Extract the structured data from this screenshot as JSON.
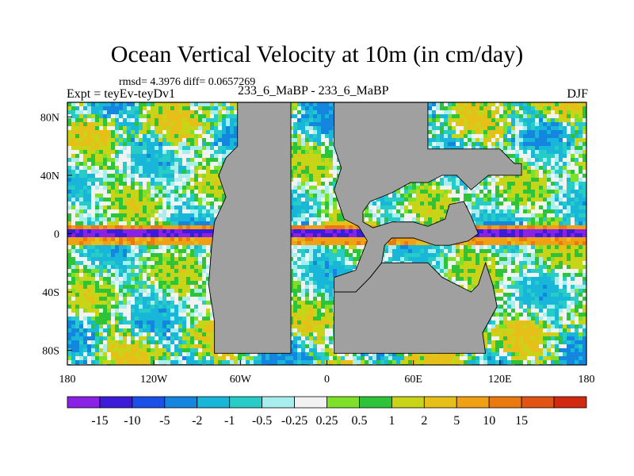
{
  "header": {
    "title": "Ocean Vertical Velocity at 10m (in cm/day)",
    "stats": "rmsd= 4.3976 diff= 0.0657269",
    "experiment": "Expt = teyEv-teyDv1",
    "comparison": "233_6_MaBP - 233_6_MaBP",
    "season": "DJF"
  },
  "map": {
    "lon_range": [
      -180,
      180
    ],
    "lat_range": [
      -90,
      90
    ],
    "x_ticks": [
      {
        "value": -180,
        "label": "180"
      },
      {
        "value": -120,
        "label": "120W"
      },
      {
        "value": -60,
        "label": "60W"
      },
      {
        "value": 0,
        "label": "0"
      },
      {
        "value": 60,
        "label": "60E"
      },
      {
        "value": 120,
        "label": "120E"
      },
      {
        "value": 180,
        "label": "180"
      }
    ],
    "y_ticks": [
      {
        "value": 80,
        "label": "80N"
      },
      {
        "value": 40,
        "label": "40N"
      },
      {
        "value": 0,
        "label": "0"
      },
      {
        "value": -40,
        "label": "40S"
      },
      {
        "value": -80,
        "label": "80S"
      }
    ],
    "land_color": "#a0a0a0",
    "west_continent": [
      [
        -72,
        90
      ],
      [
        -62,
        90
      ],
      [
        -62,
        60
      ],
      [
        -70,
        52
      ],
      [
        -75,
        40
      ],
      [
        -70,
        25
      ],
      [
        -78,
        8
      ],
      [
        -80,
        -10
      ],
      [
        -82,
        -35
      ],
      [
        -78,
        -60
      ],
      [
        -78,
        -82
      ],
      [
        -25,
        -82
      ],
      [
        -25,
        90
      ]
    ],
    "north_continent": [
      [
        5,
        90
      ],
      [
        70,
        90
      ],
      [
        70,
        58
      ],
      [
        120,
        58
      ],
      [
        130,
        48
      ],
      [
        135,
        48
      ],
      [
        135,
        40
      ],
      [
        112,
        40
      ],
      [
        100,
        30
      ],
      [
        90,
        40
      ],
      [
        80,
        40
      ],
      [
        70,
        35
      ],
      [
        58,
        35
      ],
      [
        45,
        28
      ],
      [
        30,
        22
      ],
      [
        25,
        15
      ],
      [
        25,
        8
      ],
      [
        32,
        4
      ],
      [
        45,
        8
      ],
      [
        60,
        8
      ],
      [
        70,
        5
      ],
      [
        82,
        10
      ],
      [
        85,
        20
      ],
      [
        95,
        22
      ],
      [
        100,
        12
      ],
      [
        105,
        0
      ],
      [
        98,
        -5
      ],
      [
        85,
        -8
      ],
      [
        75,
        -8
      ],
      [
        60,
        -3
      ],
      [
        45,
        -3
      ],
      [
        40,
        -8
      ],
      [
        38,
        -20
      ],
      [
        30,
        -30
      ],
      [
        20,
        -40
      ],
      [
        5,
        -40
      ],
      [
        5,
        -30
      ],
      [
        20,
        -25
      ],
      [
        28,
        -5
      ],
      [
        22,
        5
      ],
      [
        12,
        10
      ],
      [
        5,
        30
      ],
      [
        10,
        45
      ],
      [
        5,
        60
      ]
    ],
    "south_block": [
      [
        45,
        -20
      ],
      [
        70,
        -20
      ],
      [
        80,
        -30
      ],
      [
        100,
        -40
      ],
      [
        105,
        -35
      ],
      [
        110,
        -20
      ],
      [
        115,
        -35
      ],
      [
        118,
        -50
      ],
      [
        108,
        -68
      ],
      [
        110,
        -82
      ],
      [
        5,
        -82
      ],
      [
        5,
        -40
      ],
      [
        20,
        -40
      ],
      [
        30,
        -30
      ],
      [
        38,
        -20
      ]
    ]
  },
  "colorbar": {
    "colors": [
      "#8a22e6",
      "#3c1cd8",
      "#1a50e8",
      "#1486e0",
      "#18b6d8",
      "#28ccc6",
      "#a8eeee",
      "#f2f2f2",
      "#7fe02a",
      "#2ec43a",
      "#c8d418",
      "#e6c018",
      "#f0a014",
      "#ea7a10",
      "#e25414",
      "#d22a10"
    ],
    "labels": [
      "-15",
      "-10",
      "-5",
      "-2",
      "-1",
      "-0.5",
      "-0.25",
      "0.25",
      "0.5",
      "1",
      "2",
      "5",
      "10",
      "15"
    ]
  }
}
